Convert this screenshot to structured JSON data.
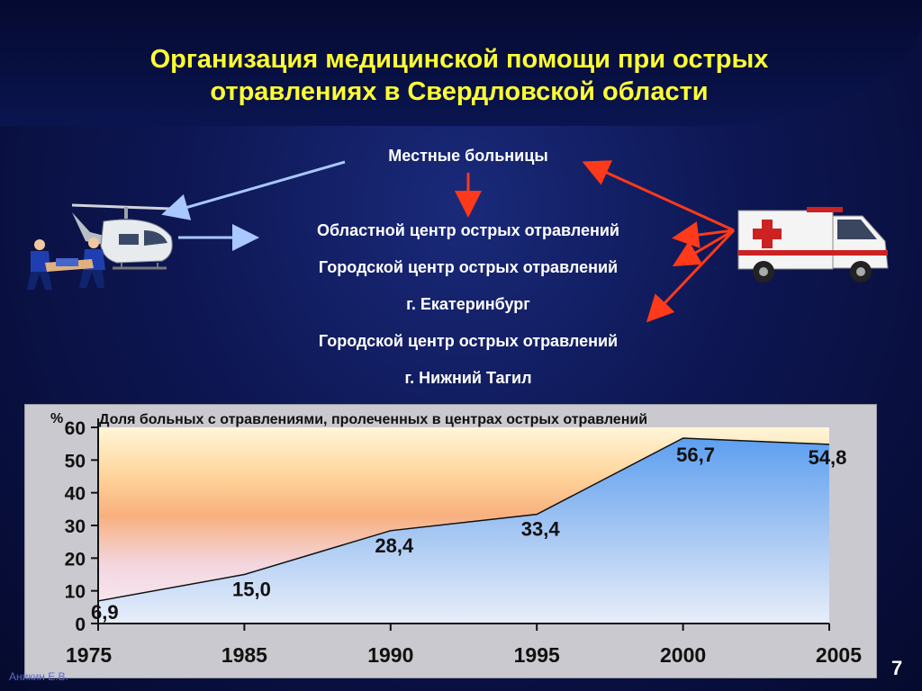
{
  "slide": {
    "title_line1": "Организация медицинской помощи при острых",
    "title_line2": "отравлениях в Свердловской области",
    "hospitals_local": "Местные больницы",
    "center_regional": "Областной центр острых отравлений",
    "center_city1": "Городской центр острых отравлений",
    "city1": "г. Екатеринбург",
    "center_city2": "Городской центр острых отравлений",
    "city2": "г. Нижний Тагил",
    "author": "Аникин Е.В.",
    "page_number": "7",
    "icons": [
      "helicopter-icon",
      "ambulance-icon",
      "paramedics-stretcher-icon"
    ]
  },
  "chart_data": {
    "type": "area",
    "title": "Доля больных с отравлениями, пролеченных в центрах острых отравлений",
    "ylabel": "%",
    "x": [
      "1975",
      "1985",
      "1990",
      "1995",
      "2000",
      "2005"
    ],
    "values": [
      6.9,
      15.0,
      28.4,
      33.4,
      56.7,
      54.8
    ],
    "value_labels": [
      "6,9",
      "15,0",
      "28,4",
      "33,4",
      "56,7",
      "54,8"
    ],
    "yticks": [
      0,
      10,
      20,
      30,
      40,
      50,
      60
    ],
    "ylim": [
      0,
      60
    ],
    "grid": false,
    "colors": {
      "area": "#6fa8f0",
      "line": "#111111"
    }
  }
}
